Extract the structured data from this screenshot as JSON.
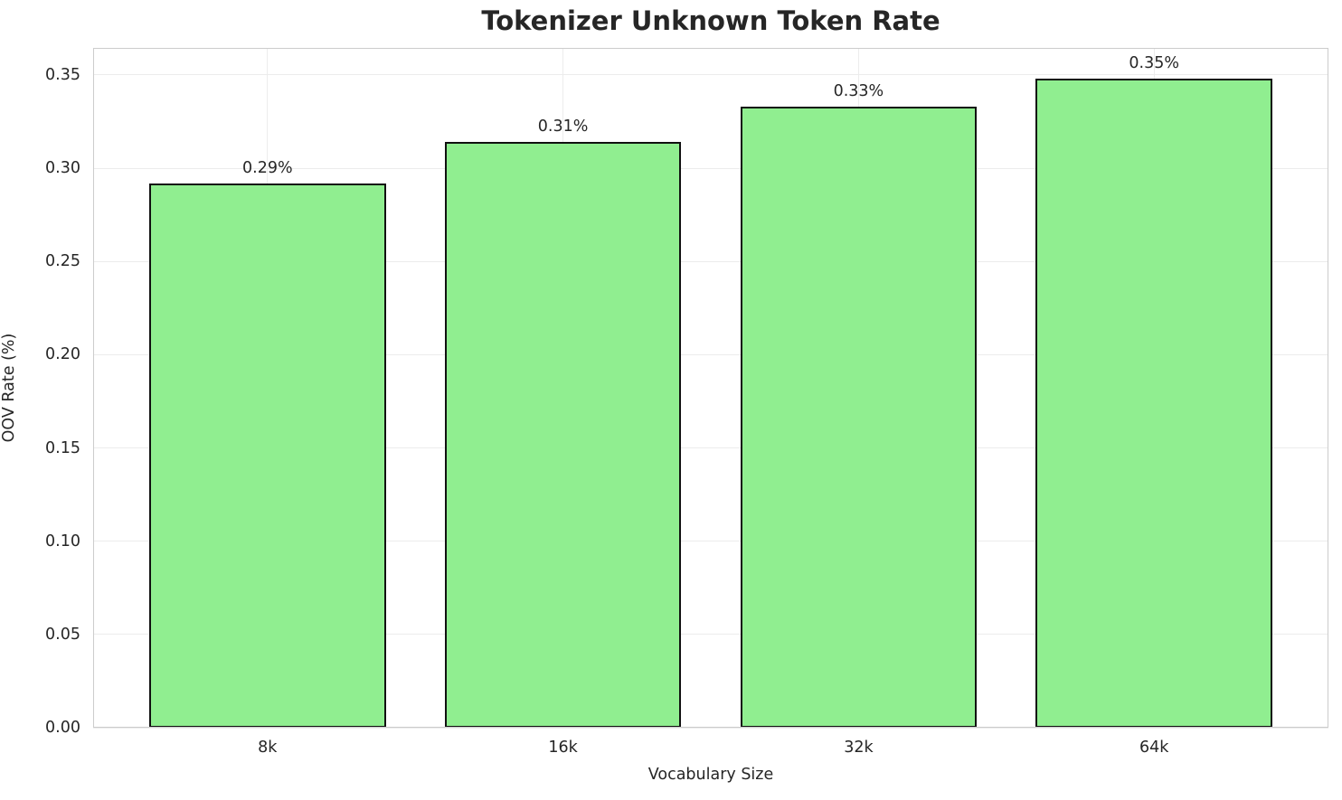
{
  "chart_data": {
    "type": "bar",
    "title": "Tokenizer Unknown Token Rate",
    "xlabel": "Vocabulary Size",
    "ylabel": "OOV Rate (%)",
    "categories": [
      "8k",
      "16k",
      "32k",
      "64k"
    ],
    "values": [
      0.292,
      0.314,
      0.333,
      0.348
    ],
    "bar_labels": [
      "0.29%",
      "0.31%",
      "0.33%",
      "0.35%"
    ],
    "ytick_labels": [
      "0.00",
      "0.05",
      "0.10",
      "0.15",
      "0.20",
      "0.25",
      "0.30",
      "0.35"
    ],
    "yticks": [
      0.0,
      0.05,
      0.1,
      0.15,
      0.2,
      0.25,
      0.3,
      0.35
    ],
    "ylim": [
      0,
      0.3645
    ],
    "grid": true,
    "legend": "none",
    "bar_color": "#90EE90",
    "bar_edge_color": "#111111",
    "grid_color": "#ececec",
    "spine_color": "#cccccc",
    "text_color": "#262626"
  }
}
